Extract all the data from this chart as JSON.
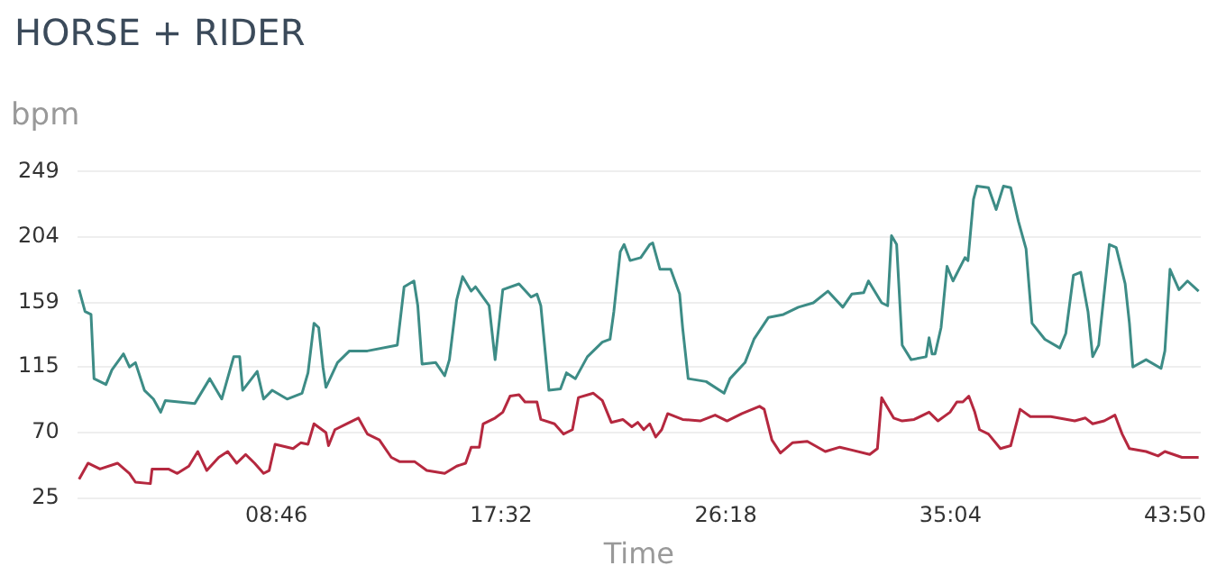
{
  "chart_data": {
    "type": "line",
    "title": "HORSE + RIDER",
    "ylabel": "bpm",
    "xlabel": "Time",
    "xlim": [
      60,
      2690
    ],
    "xticks": [
      {
        "value": 526,
        "label": "08:46"
      },
      {
        "value": 1052,
        "label": "17:32"
      },
      {
        "value": 1578,
        "label": "26:18"
      },
      {
        "value": 2104,
        "label": "35:04"
      },
      {
        "value": 2630,
        "label": "43:50"
      }
    ],
    "ylim": [
      25,
      249
    ],
    "yticks": [
      25,
      70,
      115,
      159,
      204,
      249
    ],
    "grid": "y",
    "marker": "none",
    "line_style": "solid",
    "series": [
      {
        "color": "#3d8c86",
        "x": [
          64,
          78,
          92,
          99,
          127,
          141,
          168,
          182,
          196,
          217,
          238,
          255,
          266,
          335,
          370,
          398,
          426,
          440,
          447,
          481,
          496,
          516,
          551,
          586,
          600,
          614,
          625,
          635,
          642,
          669,
          697,
          739,
          809,
          825,
          848,
          857,
          867,
          899,
          920,
          931,
          948,
          962,
          982,
          992,
          1024,
          1038,
          1056,
          1094,
          1122,
          1136,
          1145,
          1164,
          1191,
          1205,
          1226,
          1254,
          1289,
          1307,
          1316,
          1331,
          1340,
          1354,
          1379,
          1400,
          1407,
          1424,
          1449,
          1470,
          1477,
          1490,
          1532,
          1574,
          1588,
          1623,
          1644,
          1678,
          1713,
          1748,
          1783,
          1817,
          1852,
          1873,
          1901,
          1912,
          1943,
          1957,
          1966,
          1978,
          1991,
          2012,
          2047,
          2054,
          2061,
          2068,
          2082,
          2096,
          2110,
          2138,
          2145,
          2158,
          2166,
          2193,
          2211,
          2228,
          2245,
          2263,
          2281,
          2295,
          2325,
          2360,
          2374,
          2392,
          2409,
          2426,
          2437,
          2451,
          2476,
          2492,
          2513,
          2523,
          2531,
          2562,
          2597,
          2606,
          2618,
          2639,
          2659,
          2685
        ],
        "values": [
          168,
          153,
          151,
          107,
          103,
          113,
          124,
          115,
          118,
          99,
          93,
          84,
          92,
          90,
          107,
          93,
          122,
          122,
          99,
          112,
          93,
          99,
          93,
          97,
          111,
          145,
          142,
          115,
          101,
          118,
          126,
          126,
          130,
          170,
          174,
          157,
          117,
          118,
          109,
          120,
          161,
          177,
          167,
          170,
          157,
          120,
          168,
          172,
          163,
          165,
          157,
          99,
          100,
          111,
          107,
          122,
          132,
          134,
          153,
          194,
          199,
          188,
          190,
          199,
          200,
          182,
          182,
          165,
          142,
          107,
          105,
          97,
          107,
          118,
          134,
          149,
          151,
          156,
          159,
          167,
          156,
          165,
          166,
          174,
          159,
          157,
          205,
          199,
          130,
          120,
          122,
          135,
          124,
          124,
          142,
          184,
          174,
          190,
          188,
          230,
          239,
          238,
          223,
          239,
          238,
          215,
          196,
          145,
          134,
          128,
          138,
          178,
          180,
          153,
          122,
          130,
          199,
          197,
          172,
          145,
          115,
          120,
          114,
          126,
          182,
          168,
          174,
          167
        ]
      },
      {
        "color": "#b5283f",
        "x": [
          64,
          85,
          113,
          154,
          182,
          196,
          231,
          235,
          273,
          294,
          321,
          342,
          363,
          391,
          412,
          433,
          454,
          475,
          496,
          509,
          523,
          565,
          583,
          600,
          614,
          642,
          648,
          663,
          690,
          718,
          739,
          767,
          795,
          815,
          850,
          878,
          920,
          948,
          969,
          982,
          1001,
          1010,
          1038,
          1056,
          1073,
          1094,
          1108,
          1136,
          1145,
          1177,
          1198,
          1219,
          1233,
          1268,
          1289,
          1310,
          1337,
          1358,
          1372,
          1386,
          1400,
          1414,
          1428,
          1442,
          1477,
          1518,
          1553,
          1581,
          1616,
          1657,
          1668,
          1686,
          1706,
          1734,
          1769,
          1811,
          1845,
          1873,
          1915,
          1933,
          1943,
          1971,
          1991,
          2019,
          2054,
          2075,
          2103,
          2119,
          2133,
          2147,
          2161,
          2172,
          2193,
          2221,
          2245,
          2253,
          2267,
          2291,
          2339,
          2395,
          2420,
          2437,
          2464,
          2489,
          2506,
          2523,
          2562,
          2590,
          2606,
          2646,
          2685
        ],
        "values": [
          38,
          49,
          45,
          49,
          42,
          36,
          35,
          45,
          45,
          42,
          47,
          57,
          44,
          53,
          57,
          49,
          55,
          49,
          42,
          44,
          62,
          59,
          63,
          62,
          76,
          70,
          61,
          72,
          76,
          80,
          69,
          65,
          53,
          50,
          50,
          44,
          42,
          47,
          49,
          60,
          60,
          76,
          80,
          84,
          95,
          96,
          91,
          91,
          79,
          76,
          69,
          72,
          94,
          97,
          92,
          77,
          79,
          74,
          77,
          72,
          76,
          67,
          72,
          83,
          79,
          78,
          82,
          78,
          83,
          88,
          86,
          65,
          56,
          63,
          64,
          57,
          60,
          58,
          55,
          59,
          94,
          80,
          78,
          79,
          84,
          78,
          84,
          91,
          91,
          95,
          84,
          72,
          69,
          59,
          61,
          70,
          86,
          81,
          81,
          78,
          80,
          76,
          78,
          82,
          69,
          59,
          57,
          54,
          57,
          53,
          53
        ]
      }
    ]
  }
}
